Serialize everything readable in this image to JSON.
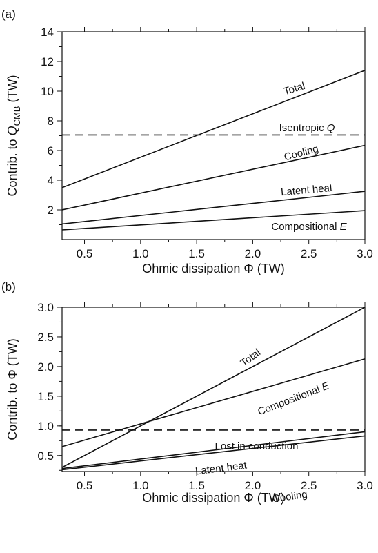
{
  "chart_data": [
    {
      "panel_label": "(a)",
      "type": "line",
      "xlabel": "Ohmic dissipation Φ (TW)",
      "ylabel_parts": [
        "Contrib. to ",
        "Q",
        "CMB",
        " (TW)"
      ],
      "xlim": [
        0.3,
        3.0
      ],
      "ylim": [
        0,
        14
      ],
      "xticks": [
        "0.5",
        "1.0",
        "1.5",
        "2.0",
        "2.5",
        "3.0"
      ],
      "yticks": [
        "2",
        "4",
        "6",
        "8",
        "10",
        "12",
        "14"
      ],
      "series": [
        {
          "name": "Total",
          "label_parts": [
            "Total"
          ],
          "x": [
            0.3,
            3.0
          ],
          "y": [
            3.5,
            11.4
          ],
          "style": "solid"
        },
        {
          "name": "Isentropic Q",
          "label_parts": [
            "Isentropic ",
            "Q"
          ],
          "x": [
            0.3,
            3.0
          ],
          "y": [
            7.05,
            7.05
          ],
          "style": "dashed"
        },
        {
          "name": "Cooling",
          "label_parts": [
            "Cooling"
          ],
          "x": [
            0.3,
            3.0
          ],
          "y": [
            2.0,
            6.35
          ],
          "style": "solid"
        },
        {
          "name": "Latent heat",
          "label_parts": [
            "Latent heat"
          ],
          "x": [
            0.3,
            3.0
          ],
          "y": [
            1.05,
            3.25
          ],
          "style": "solid"
        },
        {
          "name": "Compositional E",
          "label_parts": [
            "Compositional ",
            "E"
          ],
          "x": [
            0.3,
            3.0
          ],
          "y": [
            0.65,
            1.95
          ],
          "style": "solid"
        }
      ]
    },
    {
      "panel_label": "(b)",
      "type": "line",
      "xlabel": "Ohmic dissipation Φ (TW)",
      "ylabel_parts": [
        "Contrib. to Φ (TW)"
      ],
      "xlim": [
        0.3,
        3.0
      ],
      "ylim": [
        0.23,
        3.0
      ],
      "xticks": [
        "0.5",
        "1.0",
        "1.5",
        "2.0",
        "2.5",
        "3.0"
      ],
      "yticks": [
        "0.5",
        "1.0",
        "1.5",
        "2.0",
        "2.5",
        "3.0"
      ],
      "series": [
        {
          "name": "Total",
          "label_parts": [
            "Total"
          ],
          "x": [
            0.3,
            3.0
          ],
          "y": [
            0.3,
            3.0
          ],
          "style": "solid"
        },
        {
          "name": "Compositional E",
          "label_parts": [
            "Compositional ",
            "E"
          ],
          "x": [
            0.3,
            3.0
          ],
          "y": [
            0.65,
            2.13
          ],
          "style": "solid"
        },
        {
          "name": "Lost in conduction",
          "label_parts": [
            "Lost in conduction"
          ],
          "x": [
            0.3,
            3.0
          ],
          "y": [
            0.93,
            0.93
          ],
          "style": "dashed"
        },
        {
          "name": "Latent heat",
          "label_parts": [
            "Latent heat"
          ],
          "x": [
            0.3,
            3.0
          ],
          "y": [
            0.28,
            0.9
          ],
          "style": "solid"
        },
        {
          "name": "Cooling",
          "label_parts": [
            "Cooling"
          ],
          "x": [
            0.3,
            3.0
          ],
          "y": [
            0.26,
            0.83
          ],
          "style": "solid"
        }
      ]
    }
  ]
}
